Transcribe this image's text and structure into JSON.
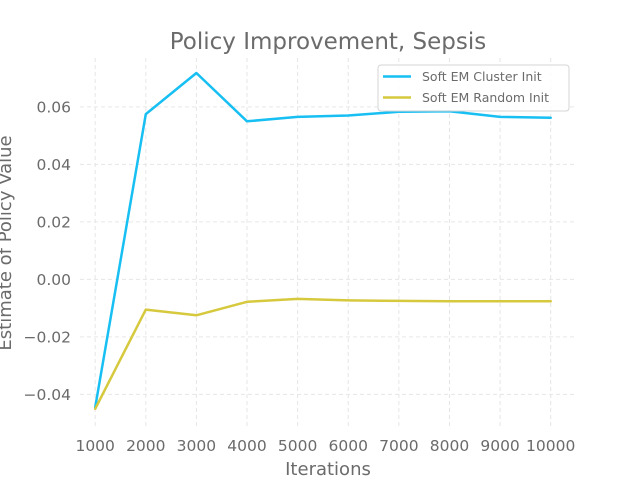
{
  "chart_data": {
    "type": "line",
    "title": "Policy Improvement, Sepsis",
    "xlabel": "Iterations",
    "ylabel": "Estimate of Policy Value",
    "x": [
      1000,
      2000,
      3000,
      4000,
      5000,
      6000,
      7000,
      8000,
      9000,
      10000
    ],
    "xlim": [
      700,
      10500
    ],
    "ylim": [
      -0.051,
      0.077
    ],
    "xticks": [
      1000,
      2000,
      3000,
      4000,
      5000,
      6000,
      7000,
      8000,
      9000,
      10000
    ],
    "yticks": [
      -0.04,
      -0.02,
      0.0,
      0.02,
      0.04,
      0.06
    ],
    "ytick_labels": [
      "−0.04",
      "−0.02",
      "0.00",
      "0.02",
      "0.04",
      "0.06"
    ],
    "grid": true,
    "legend_position": "top-right",
    "series": [
      {
        "name": "Soft EM Cluster Init",
        "color": "#17bff2",
        "values": [
          -0.0445,
          0.0575,
          0.0718,
          0.055,
          0.0565,
          0.057,
          0.0583,
          0.0585,
          0.0565,
          0.0562
        ]
      },
      {
        "name": "Soft EM Random Init",
        "color": "#d6c93e",
        "values": [
          -0.045,
          -0.0105,
          -0.0125,
          -0.0078,
          -0.0068,
          -0.0073,
          -0.0075,
          -0.0076,
          -0.0076,
          -0.0076
        ]
      }
    ]
  }
}
